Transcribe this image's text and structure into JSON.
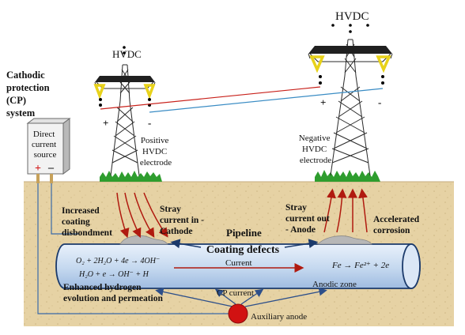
{
  "labels": {
    "cp_system": [
      "Cathodic",
      "protection",
      "(CP)",
      "system"
    ],
    "dc_source": [
      "Direct",
      "current",
      "source"
    ],
    "dc_plus": "+",
    "dc_minus": "–",
    "hvdc_left": "HVDC",
    "hvdc_right": "HVDC",
    "tower_left_plus": "+",
    "tower_left_minus": "-",
    "tower_right_plus": "+",
    "tower_right_minus": "-",
    "positive_electrode": [
      "Positive",
      "HVDC",
      "electrode"
    ],
    "negative_electrode": [
      "Negative",
      "HVDC",
      "electrode"
    ],
    "increased_coating": [
      "Increased",
      "coating",
      "disbondment"
    ],
    "stray_in": [
      "Stray",
      "current in -",
      "Cathode"
    ],
    "stray_out": [
      "Stray",
      "current out",
      "- Anode"
    ],
    "accelerated": [
      "Accelerated",
      "corrosion"
    ],
    "pipeline": "Pipeline",
    "coating_defects": "Coating defects",
    "current": "Current",
    "eq_cathodic_1": "O₂ + 2H₂O + 4e → 4OH⁻",
    "eq_cathodic_2": "H₂O + e → OH⁻ + H",
    "eq_anodic": "Fe → Fe²⁺ + 2e",
    "enhanced_hydrogen": [
      "Enhanced hydrogen",
      "evolution and permeation"
    ],
    "anodic_zone": "Anodic zone",
    "cp_current": "CP current",
    "auxiliary_anode": "Auxiliary anode"
  },
  "colors": {
    "soil": "#e6d2a4",
    "pipe_fill": "#cfe0f3",
    "pipe_edge": "#1b3a6b",
    "arrow_red": "#b01a0f",
    "wire_blue": "#3a6aa8",
    "grass": "#2e9d2e",
    "anode_red": "#d11212",
    "insulator": "#e8d21a"
  }
}
